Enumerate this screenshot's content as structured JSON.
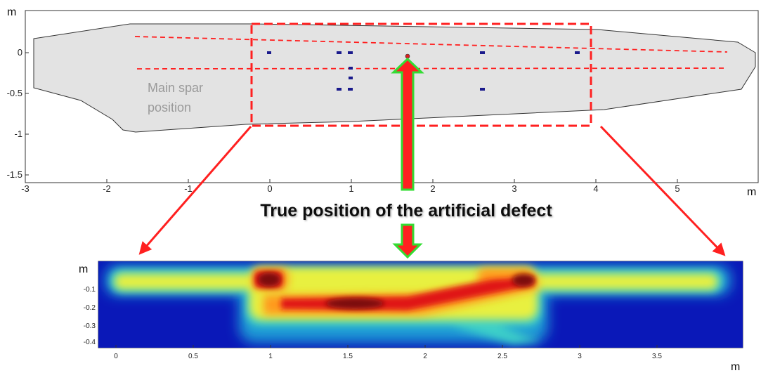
{
  "top_plot": {
    "x_unit": "m",
    "y_unit": "m",
    "x_ticks": [
      "-3",
      "-2",
      "-1",
      "0",
      "1",
      "2",
      "3",
      "4",
      "5"
    ],
    "y_ticks": [
      "0",
      "-0.5",
      "-1",
      "-1.5"
    ],
    "spar_label_line1": "Main spar",
    "spar_label_line2": "position",
    "colors": {
      "blade_fill": "#e3e3e3",
      "spar_lines": "#ff2020",
      "sensors": "#1a1a8c",
      "box": "#ff2020"
    }
  },
  "annotation": {
    "text": "True position of the artificial defect",
    "arrow_color": "#ff2020",
    "arrow_outline": "#33dd33"
  },
  "bottom_plot": {
    "x_unit": "m",
    "y_unit": "m",
    "x_ticks": [
      "0",
      "0.5",
      "1",
      "1.5",
      "2",
      "2.5",
      "3",
      "3.5"
    ],
    "y_ticks": [
      "-0.1",
      "-0.2",
      "-0.3",
      "-0.4"
    ],
    "colormap": "jet"
  }
}
